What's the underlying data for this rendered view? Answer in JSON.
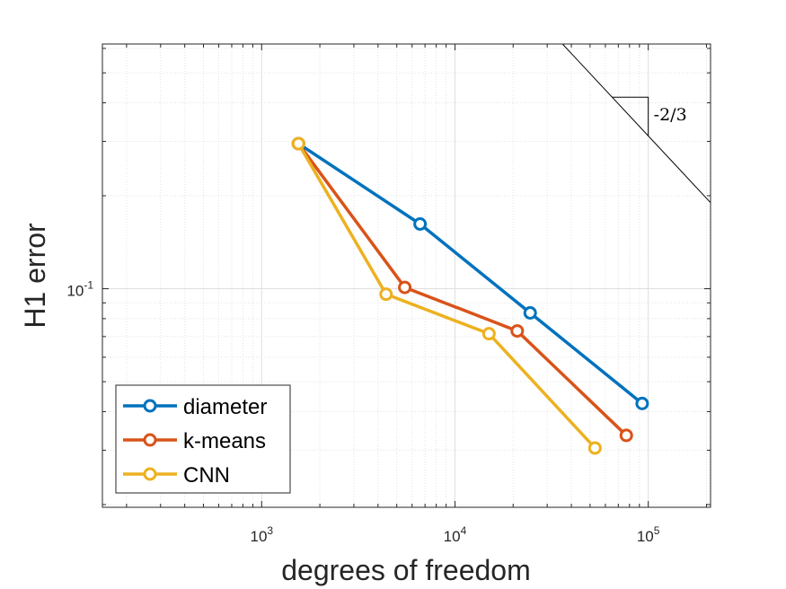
{
  "chart_data": {
    "type": "line",
    "xscale": "log",
    "yscale": "log",
    "xlim": [
      150,
      210000
    ],
    "ylim": [
      0.0196,
      0.62
    ],
    "xlabel": "degrees of freedom",
    "ylabel": "H1 error",
    "xticks": [
      {
        "value": 1000,
        "base": "10",
        "exp": "3"
      },
      {
        "value": 10000,
        "base": "10",
        "exp": "4"
      },
      {
        "value": 100000,
        "base": "10",
        "exp": "5"
      }
    ],
    "yticks": [
      {
        "value": 0.1,
        "base": "10",
        "exp": "-1"
      }
    ],
    "grid": true,
    "legend_position": "bottom-left",
    "series": [
      {
        "name": "diameter",
        "color": "#0072BD",
        "x": [
          1550,
          6600,
          24500,
          93000
        ],
        "y": [
          0.295,
          0.162,
          0.0835,
          0.0425
        ]
      },
      {
        "name": "k-means",
        "color": "#D95319",
        "x": [
          1550,
          5500,
          21000,
          77000
        ],
        "y": [
          0.295,
          0.101,
          0.073,
          0.0335
        ]
      },
      {
        "name": "CNN",
        "color": "#EDB120",
        "x": [
          1550,
          4400,
          15000,
          53000
        ],
        "y": [
          0.295,
          0.096,
          0.0715,
          0.0305
        ]
      }
    ],
    "slope_triangle": {
      "label": "-2/3",
      "line_start": [
        36000,
        0.62
      ],
      "line_end": [
        210000,
        0.19
      ],
      "tri_left_x": 65000,
      "tri_right_x": 100000
    }
  }
}
